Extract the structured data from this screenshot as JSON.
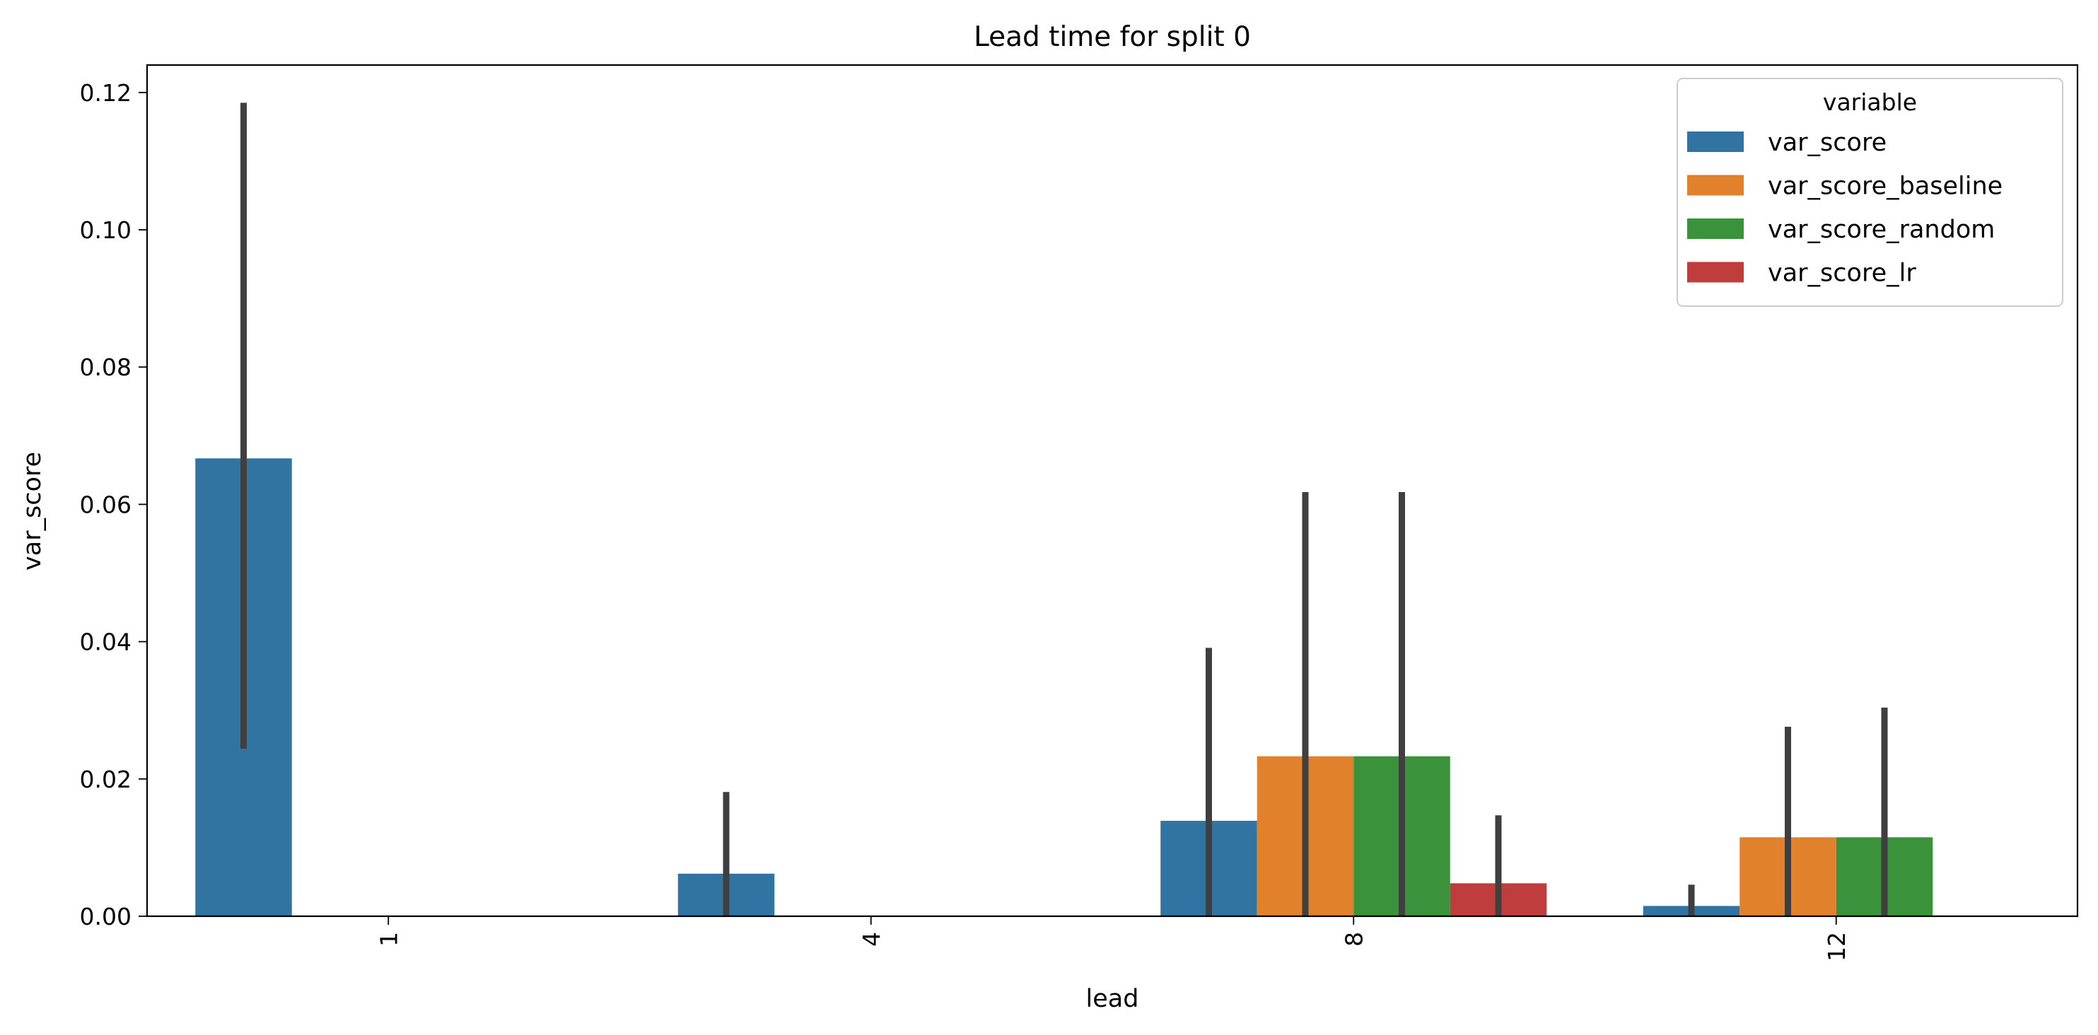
{
  "chart_data": {
    "type": "bar",
    "title": "Lead time for split 0",
    "xlabel": "lead",
    "ylabel": "var_score",
    "categories": [
      "1",
      "4",
      "8",
      "12"
    ],
    "ylim": [
      0,
      0.124
    ],
    "yticks": [
      "0.00",
      "0.02",
      "0.04",
      "0.06",
      "0.08",
      "0.10",
      "0.12"
    ],
    "ytick_values": [
      0,
      0.02,
      0.04,
      0.06,
      0.08,
      0.1,
      0.12
    ],
    "xtick_rotation": 90,
    "grid": false,
    "legend": {
      "title": "variable",
      "placement": "top-right"
    },
    "series": [
      {
        "name": "var_score",
        "color": "#3274a1",
        "values": [
          0.0667,
          0.0062,
          0.0139,
          0.0015
        ],
        "err_low": [
          0.0244,
          0.0,
          0.0,
          0.0
        ],
        "err_high": [
          0.1185,
          0.0181,
          0.0391,
          0.0046
        ]
      },
      {
        "name": "var_score_baseline",
        "color": "#e1812c",
        "values": [
          0.0,
          0.0,
          0.0233,
          0.0115
        ],
        "err_low": [
          null,
          null,
          0.0,
          0.0
        ],
        "err_high": [
          null,
          null,
          0.0618,
          0.0276
        ]
      },
      {
        "name": "var_score_random",
        "color": "#3a923a",
        "values": [
          0.0,
          0.0,
          0.0233,
          0.0115
        ],
        "err_low": [
          null,
          null,
          0.0,
          0.0
        ],
        "err_high": [
          null,
          null,
          0.0618,
          0.0304
        ]
      },
      {
        "name": "var_score_lr",
        "color": "#c03d3e",
        "values": [
          0.0,
          0.0,
          0.0048,
          0.0
        ],
        "err_low": [
          null,
          null,
          0.0,
          null
        ],
        "err_high": [
          null,
          null,
          0.0147,
          null
        ]
      }
    ]
  }
}
